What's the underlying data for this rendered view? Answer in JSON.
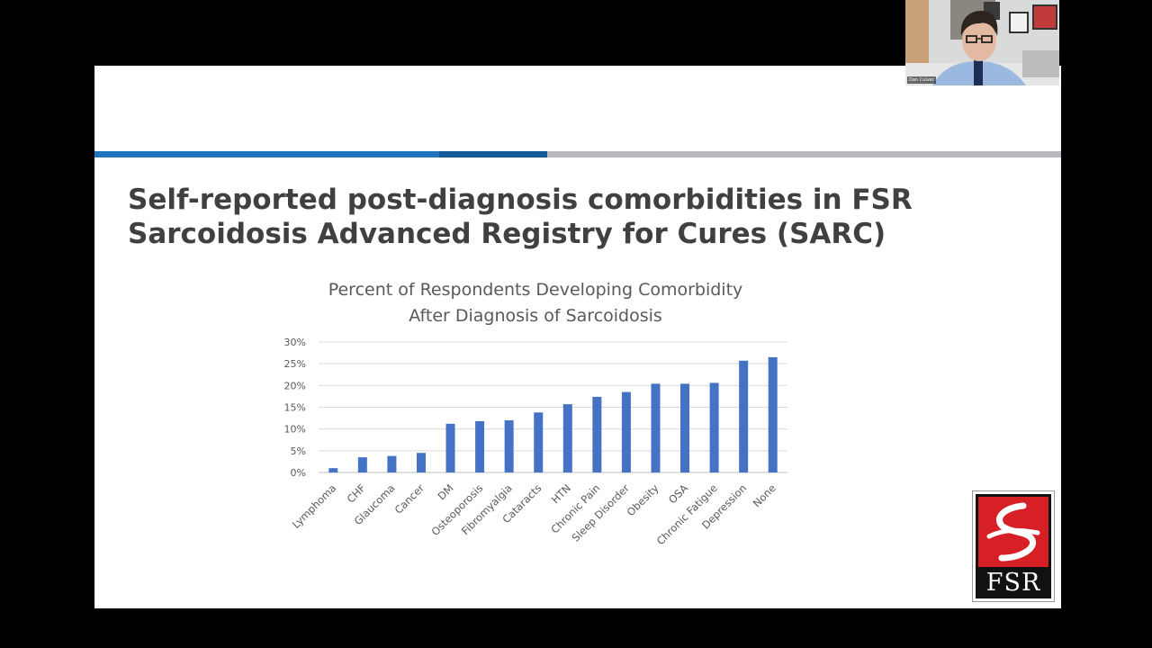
{
  "slide": {
    "title_lines": [
      "Self-reported post-diagnosis comorbidities in FSR",
      "Sarcoidosis Advanced Registry for Cures (SARC)"
    ],
    "accent_colors": {
      "primary": "#1f76bd",
      "dark": "#13599a",
      "grey": "#b7b9bc"
    }
  },
  "chart_data": {
    "type": "bar",
    "title": [
      "Percent of Respondents Developing Comorbidity",
      "After Diagnosis of Sarcoidosis"
    ],
    "categories": [
      "Lymphoma",
      "CHF",
      "Glaucoma",
      "Cancer",
      "DM",
      "Osteoporosis",
      "Fibromyalgia",
      "Cataracts",
      "HTN",
      "Chronic Pain",
      "Sleep Disorder",
      "Obesity",
      "OSA",
      "Chronic Fatigue",
      "Depression",
      "None"
    ],
    "values": [
      1.0,
      3.5,
      3.8,
      4.5,
      11.2,
      11.8,
      12.0,
      13.8,
      15.7,
      17.4,
      18.5,
      20.4,
      20.4,
      20.6,
      25.7,
      26.5
    ],
    "ylim": [
      0,
      30
    ],
    "yticks": [
      "0%",
      "5%",
      "10%",
      "15%",
      "20%",
      "25%",
      "30%"
    ],
    "bar_color": "#4472c4",
    "grid": true
  },
  "logo": {
    "text": "FSR",
    "red": "#d71f26"
  },
  "webcam": {
    "name_label": "Dan Culver"
  }
}
